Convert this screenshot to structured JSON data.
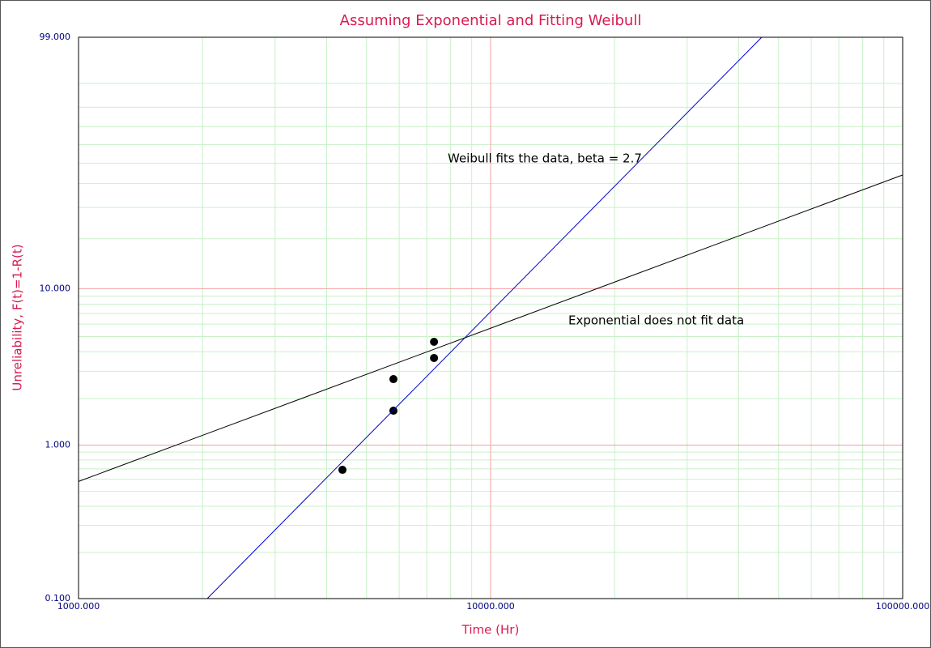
{
  "chart_data": {
    "type": "scatter",
    "title": "Assuming Exponential and Fitting Weibull",
    "x_label": "Time (Hr)",
    "y_label": "Unreliability, F(t)=1-R(t)",
    "xscale": "log",
    "yscale": "weibull",
    "xlim": [
      1000,
      100000
    ],
    "ylim": [
      0.1,
      99
    ],
    "xticks": [
      {
        "value": 1000,
        "label": "1000.000"
      },
      {
        "value": 10000,
        "label": "10000.000"
      },
      {
        "value": 100000,
        "label": "100000.000"
      }
    ],
    "yticks": [
      {
        "value": 0.1,
        "label": "0.100"
      },
      {
        "value": 1,
        "label": "1.000"
      },
      {
        "value": 10,
        "label": "10.000"
      },
      {
        "value": 99,
        "label": "99.000"
      }
    ],
    "minor_xticks": [
      2000,
      3000,
      4000,
      5000,
      6000,
      7000,
      8000,
      9000,
      20000,
      30000,
      40000,
      50000,
      60000,
      70000,
      80000,
      90000
    ],
    "minor_yticks": [
      0.2,
      0.3,
      0.4,
      0.5,
      0.6,
      0.7,
      0.8,
      0.9,
      2,
      3,
      4,
      5,
      6,
      7,
      8,
      9,
      20,
      30,
      40,
      50,
      60,
      70,
      80,
      90
    ],
    "grid": true,
    "major_grid_color": "#f4a0a0",
    "minor_grid_color": "#c8f0c8",
    "series": [
      {
        "type": "scatter",
        "color": "#000000",
        "x": [
          4370,
          5810,
          5810,
          7290,
          7290
        ],
        "values": [
          0.69,
          2.67,
          1.67,
          4.63,
          3.65
        ]
      },
      {
        "type": "line",
        "color": "#0000cc",
        "x": [
          2053,
          45500
        ],
        "values": [
          0.1,
          99
        ]
      },
      {
        "type": "line",
        "color": "#000000",
        "x": [
          1000,
          100000
        ],
        "values": [
          0.58,
          44.1
        ]
      }
    ],
    "annotations": [
      "Weibull fits the data, beta = 2.7",
      "Exponential does not fit data"
    ]
  }
}
